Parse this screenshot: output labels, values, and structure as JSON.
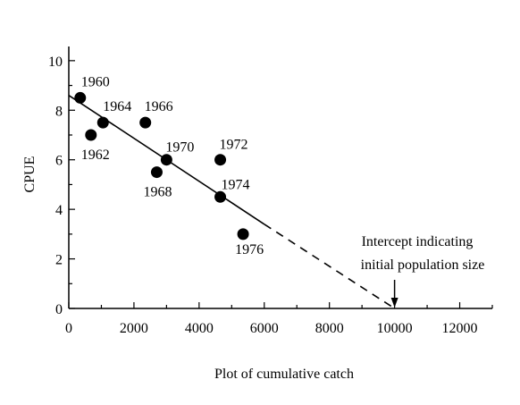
{
  "chart_data": {
    "type": "scatter",
    "title": "",
    "xlabel": "Plot of cumulative catch",
    "ylabel": "CPUE",
    "xlim": [
      0,
      13000
    ],
    "ylim": [
      0,
      10.5
    ],
    "x_ticks": [
      0,
      2000,
      4000,
      6000,
      8000,
      10000,
      12000
    ],
    "x_tick_labels": [
      "0",
      "2000",
      "4000",
      "6000",
      "8000",
      "10000",
      "12000"
    ],
    "y_ticks": [
      0,
      2,
      4,
      6,
      8,
      10
    ],
    "y_tick_labels": [
      "0",
      "2",
      "4",
      "6",
      "8",
      "10"
    ],
    "grid": false,
    "points": [
      {
        "label": "1960",
        "x": 350,
        "y": 8.5
      },
      {
        "label": "1962",
        "x": 680,
        "y": 7.0
      },
      {
        "label": "1964",
        "x": 1050,
        "y": 7.5
      },
      {
        "label": "1966",
        "x": 2350,
        "y": 7.5
      },
      {
        "label": "1968",
        "x": 2700,
        "y": 5.5
      },
      {
        "label": "1970",
        "x": 3000,
        "y": 6.0
      },
      {
        "label": "1972",
        "x": 4650,
        "y": 6.0
      },
      {
        "label": "1974",
        "x": 4650,
        "y": 4.5
      },
      {
        "label": "1976",
        "x": 5350,
        "y": 3.0
      }
    ],
    "regression_line": {
      "solid": {
        "x": [
          0,
          6000
        ],
        "y": [
          8.6,
          3.4
        ]
      },
      "dashed": {
        "x": [
          6000,
          10000
        ],
        "y": [
          3.4,
          0
        ]
      }
    },
    "annotation": {
      "lines": [
        "Intercept  indicating",
        "initial  population  size"
      ],
      "arrow_x": 10000
    }
  }
}
